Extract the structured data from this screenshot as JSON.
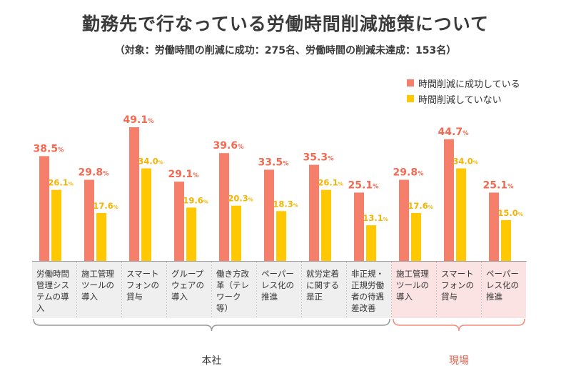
{
  "colors": {
    "success": "#f57f6a",
    "fail": "#ffc800",
    "axis": "#999999",
    "cell_bg": "#efefef",
    "cell_bg_site": "#fbe3e3",
    "bracket_main": "#999999",
    "bracket_site": "#f28b7c",
    "value_text": "#f26a52",
    "value_text2": "#f5b400"
  },
  "chart_data": {
    "type": "bar",
    "title": "勤務先で行なっている労働時間削減施策について",
    "subtitle": "（対象：労働時間の削減に成功：275名、労働時間の削減未達成：153名）",
    "unit": "%",
    "ylim": [
      0,
      55
    ],
    "legend_position": "top-right",
    "categories": [
      "労働時間管理システムの導入",
      "施工管理ツールの導入",
      "スマートフォンの貸与",
      "グループウェアの導入",
      "働き方改革（テレワーク等）",
      "ペーパーレス化の推進",
      "就労定着に関する是正",
      "非正規・正規労働者の待遇差改善",
      "施工管理ツールの導入",
      "スマートフォンの貸与",
      "ペーパーレス化の推進"
    ],
    "category_lines": [
      [
        "労働時間",
        "管理シス",
        "テムの導",
        "入"
      ],
      [
        "施工管理",
        "ツールの",
        "導入"
      ],
      [
        "スマート",
        "フォンの",
        "貸与"
      ],
      [
        "グループ",
        "ウェアの",
        "導入"
      ],
      [
        "働き方改",
        "革（テレ",
        "ワーク",
        "等）"
      ],
      [
        "ペーパー",
        "レス化の",
        "推進"
      ],
      [
        "就労定着",
        "に関する",
        "是正"
      ],
      [
        "非正規・",
        "正規労働",
        "者の待遇",
        "差改善"
      ],
      [
        "施工管理",
        "ツールの",
        "導入"
      ],
      [
        "スマート",
        "フォンの",
        "貸与"
      ],
      [
        "ペーパー",
        "レス化の",
        "推進"
      ]
    ],
    "series": [
      {
        "name": "時間削減に成功している",
        "values": [
          38.5,
          29.8,
          49.1,
          29.1,
          39.6,
          33.5,
          35.3,
          25.1,
          29.8,
          44.7,
          25.1
        ]
      },
      {
        "name": "時間削減していない",
        "values": [
          26.1,
          17.6,
          34.0,
          19.6,
          20.3,
          18.3,
          26.1,
          13.1,
          17.6,
          34.0,
          15.0
        ]
      }
    ],
    "groups": [
      {
        "label": "本社",
        "from": 0,
        "to": 7
      },
      {
        "label": "現場",
        "from": 8,
        "to": 10
      }
    ]
  }
}
